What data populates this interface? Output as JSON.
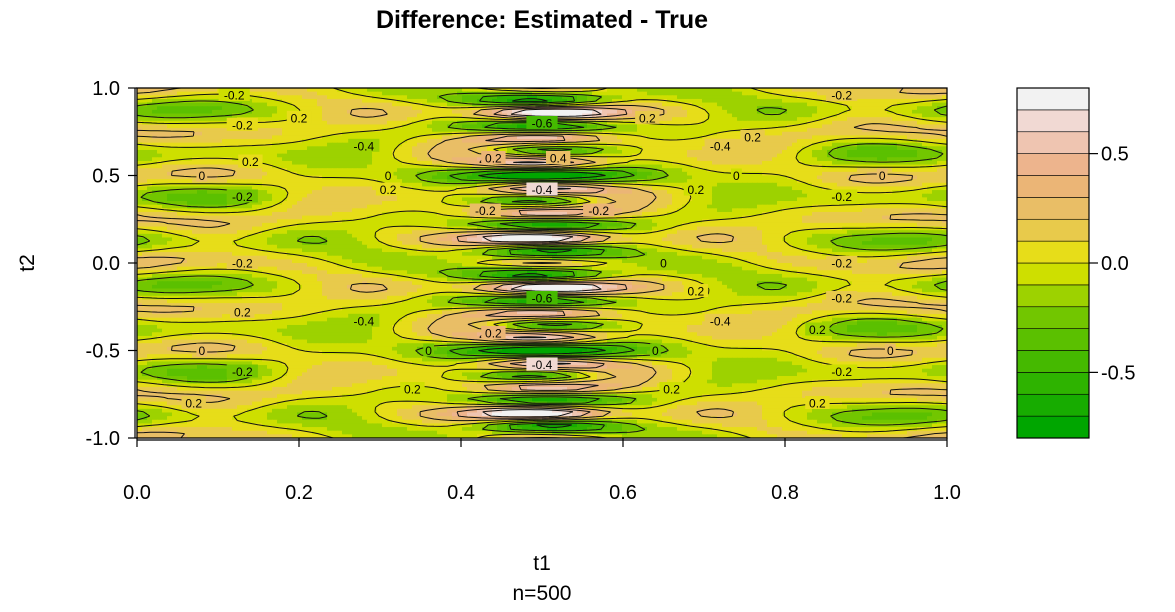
{
  "chart_data": {
    "type": "heatmap",
    "title": "Difference: Estimated - True",
    "xlabel": "t1",
    "sublabel": "n=500",
    "ylabel": "t2",
    "xlim": [
      0.0,
      1.0
    ],
    "ylim": [
      -1.0,
      1.0
    ],
    "x_ticks": [
      "0.0",
      "0.2",
      "0.4",
      "0.6",
      "0.8",
      "1.0"
    ],
    "y_ticks": [
      "-1.0",
      "-0.5",
      "0.0",
      "0.5",
      "1.0"
    ],
    "levels": [
      -0.8,
      -0.7,
      -0.6,
      -0.5,
      -0.4,
      -0.3,
      -0.2,
      -0.1,
      0.0,
      0.1,
      0.2,
      0.3,
      0.4,
      0.5,
      0.6,
      0.7,
      0.8
    ],
    "contour_labels": [
      {
        "text": "0",
        "x": 0.31,
        "y": 0.5
      },
      {
        "text": "0",
        "x": 0.08,
        "y": 0.5
      },
      {
        "text": "0",
        "x": 0.74,
        "y": 0.5
      },
      {
        "text": "0",
        "x": 0.92,
        "y": 0.5
      },
      {
        "text": "0",
        "x": 0.08,
        "y": -0.5
      },
      {
        "text": "0",
        "x": 0.36,
        "y": -0.5
      },
      {
        "text": "0",
        "x": 0.64,
        "y": -0.5
      },
      {
        "text": "0",
        "x": 0.93,
        "y": -0.5
      },
      {
        "text": "0",
        "x": 0.65,
        "y": 0.0
      },
      {
        "text": "-0.4",
        "x": 0.5,
        "y": 0.42
      },
      {
        "text": "-0.4",
        "x": 0.5,
        "y": -0.58
      },
      {
        "text": "-0.4",
        "x": 0.28,
        "y": 0.67
      },
      {
        "text": "-0.4",
        "x": 0.72,
        "y": 0.67
      },
      {
        "text": "-0.4",
        "x": 0.28,
        "y": -0.33
      },
      {
        "text": "-0.4",
        "x": 0.72,
        "y": -0.33
      },
      {
        "text": "-0.6",
        "x": 0.5,
        "y": 0.8
      },
      {
        "text": "-0.6",
        "x": 0.5,
        "y": -0.2
      },
      {
        "text": "0.4",
        "x": 0.52,
        "y": 0.6
      },
      {
        "text": "0.2",
        "x": 0.2,
        "y": 0.83
      },
      {
        "text": "0.2",
        "x": 0.63,
        "y": 0.83
      },
      {
        "text": "0.2",
        "x": 0.76,
        "y": 0.72
      },
      {
        "text": "0.2",
        "x": 0.44,
        "y": 0.6
      },
      {
        "text": "0.2",
        "x": 0.31,
        "y": 0.42
      },
      {
        "text": "0.2",
        "x": 0.69,
        "y": 0.42
      },
      {
        "text": "0.2",
        "x": 0.14,
        "y": 0.58
      },
      {
        "text": "0.2",
        "x": 0.13,
        "y": -0.28
      },
      {
        "text": "0.2",
        "x": 0.44,
        "y": -0.4
      },
      {
        "text": "0.2",
        "x": 0.69,
        "y": -0.16
      },
      {
        "text": "0.2",
        "x": 0.84,
        "y": -0.38
      },
      {
        "text": "0.2",
        "x": 0.34,
        "y": -0.72
      },
      {
        "text": "0.2",
        "x": 0.66,
        "y": -0.72
      },
      {
        "text": "0.2",
        "x": 0.07,
        "y": -0.8
      },
      {
        "text": "0.2",
        "x": 0.84,
        "y": -0.8
      },
      {
        "text": "-0.2",
        "x": 0.12,
        "y": 0.96
      },
      {
        "text": "-0.2",
        "x": 0.87,
        "y": 0.96
      },
      {
        "text": "-0.2",
        "x": 0.13,
        "y": 0.79
      },
      {
        "text": "-0.2",
        "x": 0.43,
        "y": 0.3
      },
      {
        "text": "-0.2",
        "x": 0.87,
        "y": 0.38
      },
      {
        "text": "-0.2",
        "x": 0.13,
        "y": 0.38
      },
      {
        "text": "-0.2",
        "x": 0.57,
        "y": 0.3
      },
      {
        "text": "-0.2",
        "x": 0.87,
        "y": -0.2
      },
      {
        "text": "-0.2",
        "x": 0.13,
        "y": -0.62
      },
      {
        "text": "-0.2",
        "x": 0.87,
        "y": -0.62
      },
      {
        "text": "-0.2",
        "x": 0.13,
        "y": 0.0
      },
      {
        "text": "-0.2",
        "x": 0.87,
        "y": 0.0
      }
    ],
    "colorbar": {
      "range": [
        -0.8,
        0.8
      ],
      "ticks": [
        "0.5",
        "0.0",
        "-0.5"
      ]
    }
  }
}
